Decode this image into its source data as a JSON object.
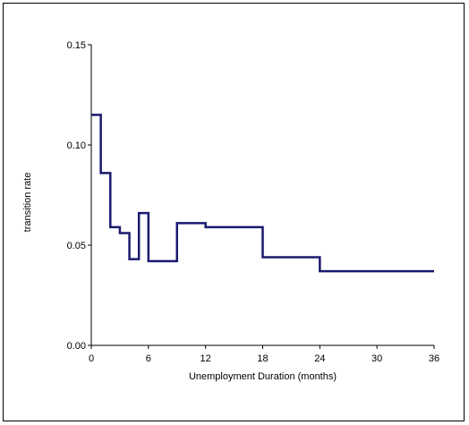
{
  "chart_data": {
    "type": "line",
    "step": true,
    "title": "",
    "xlabel": "Unemployment Duration (months)",
    "ylabel": "transition rate",
    "xlim": [
      0,
      36
    ],
    "ylim": [
      0,
      0.15
    ],
    "xticks": [
      0,
      6,
      12,
      18,
      24,
      30,
      36
    ],
    "xtick_labels": [
      "0",
      "6",
      "12",
      "18",
      "24",
      "30",
      "36"
    ],
    "yticks": [
      0,
      0.05,
      0.1,
      0.15
    ],
    "ytick_labels": [
      "0.00",
      "0.05",
      "0.10",
      "0.15"
    ],
    "grid": false,
    "legend": "none",
    "series": [
      {
        "color": "#1a1a6e",
        "x": [
          0,
          1,
          2,
          3,
          4,
          5,
          6,
          9,
          12,
          18,
          24,
          36
        ],
        "y": [
          0.115,
          0.086,
          0.059,
          0.056,
          0.043,
          0.066,
          0.042,
          0.061,
          0.059,
          0.044,
          0.037,
          0.037
        ]
      }
    ]
  }
}
